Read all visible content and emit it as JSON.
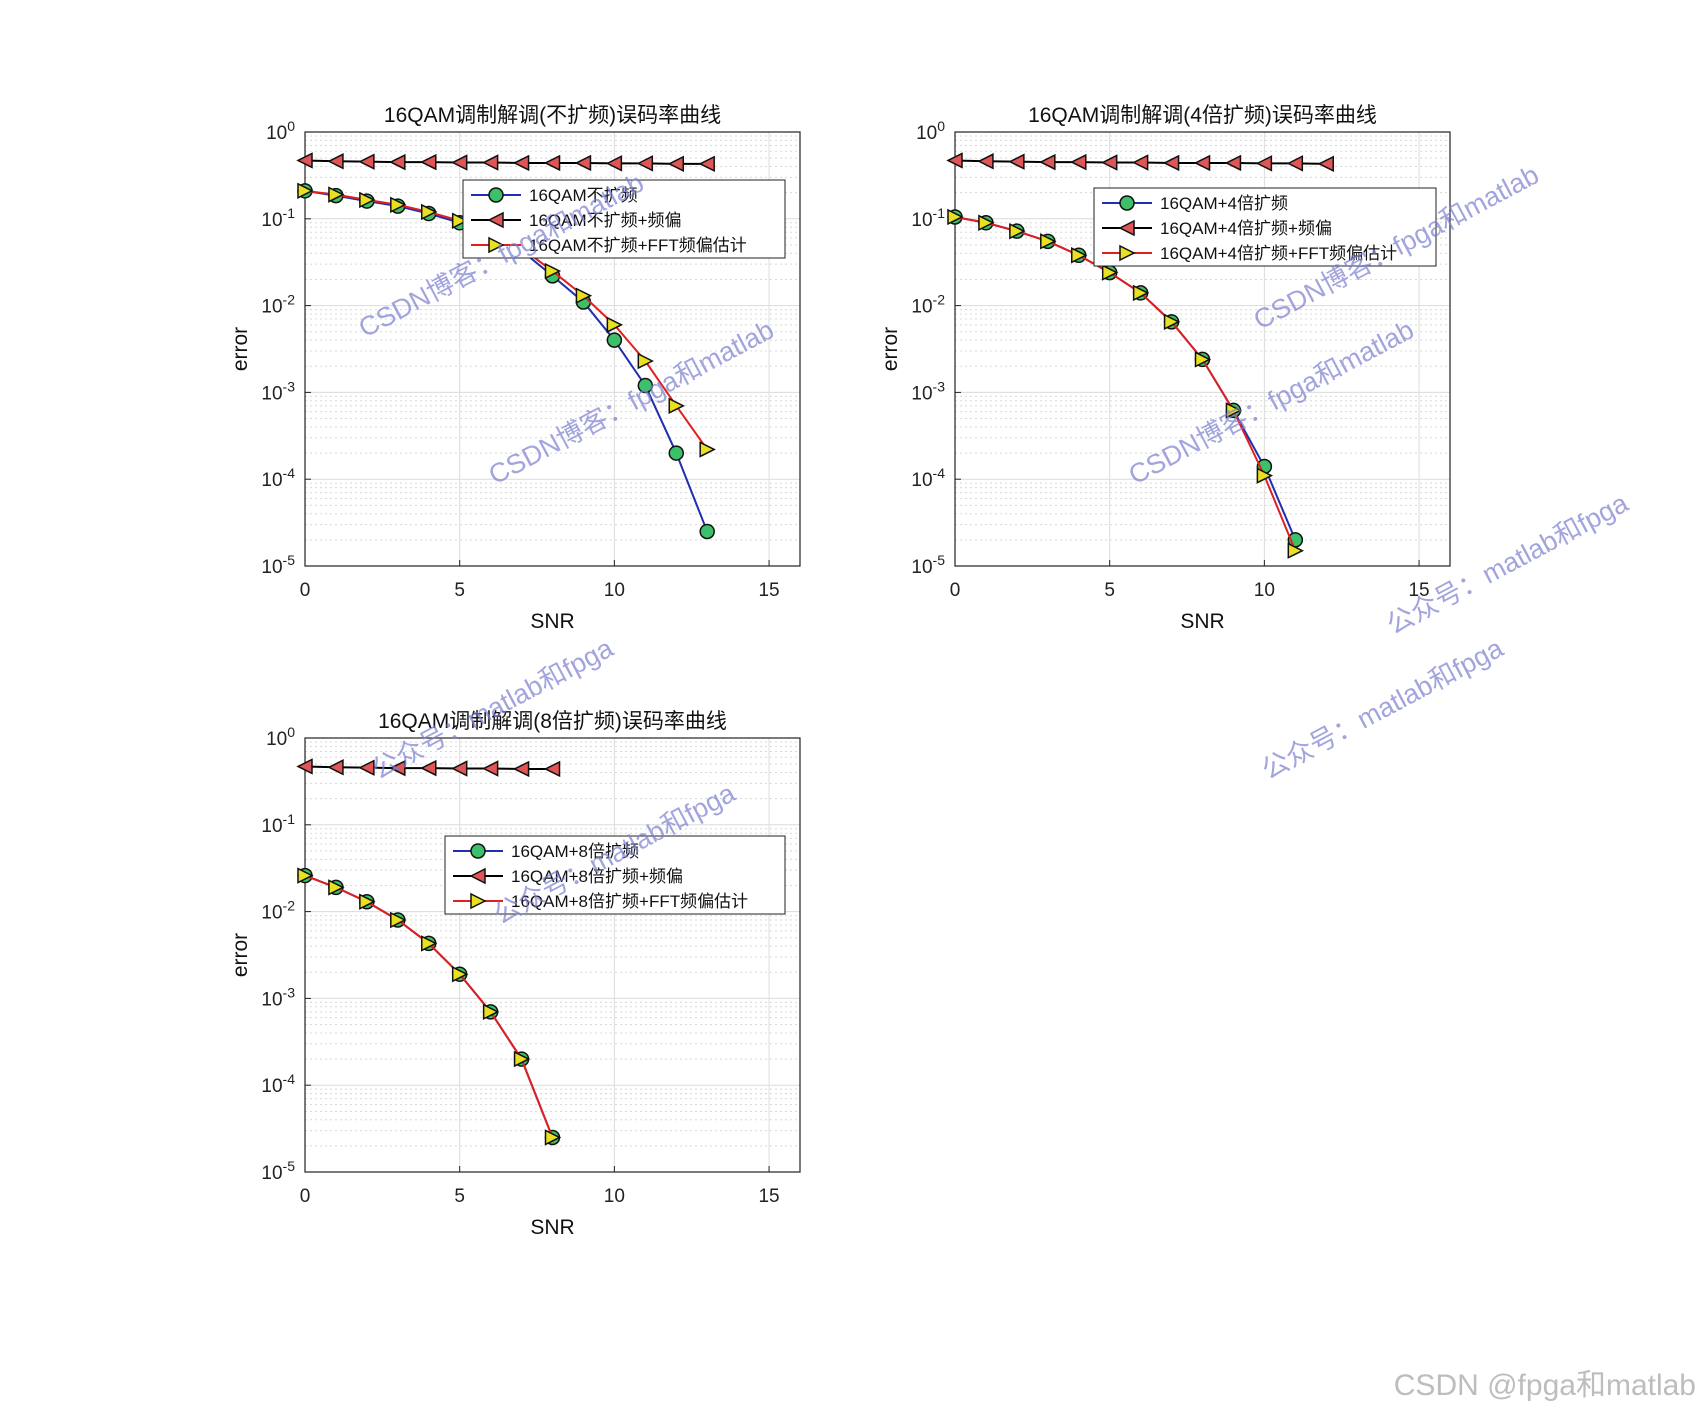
{
  "chart_data": [
    {
      "type": "line",
      "title": "16QAM调制解调(不扩频)误码率曲线",
      "xlabel": "SNR",
      "ylabel": "error",
      "xlim": [
        0,
        16
      ],
      "ylim": [
        1e-05,
        1
      ],
      "yscale": "log",
      "x_ticks": [
        "0",
        "5",
        "10",
        "15"
      ],
      "y_ticks": [
        "10-5",
        "10-4",
        "10-3",
        "10-2",
        "10-1",
        "100"
      ],
      "grid": true,
      "minor_grid": true,
      "legend_position": "top-right",
      "series": [
        {
          "name": "16QAM不扩频",
          "color": "#1f2fb0",
          "marker": "circle",
          "marker_color": "#3cc06a",
          "x": [
            0,
            1,
            2,
            3,
            4,
            5,
            6,
            7,
            8,
            9,
            10,
            11,
            12,
            13
          ],
          "y": [
            0.21,
            0.185,
            0.16,
            0.14,
            0.115,
            0.09,
            0.065,
            0.043,
            0.022,
            0.011,
            0.004,
            0.0012,
            0.0002,
            2.5e-05
          ]
        },
        {
          "name": "16QAM不扩频+频偏",
          "color": "#000000",
          "marker": "triangle-left",
          "marker_color": "#e05555",
          "x": [
            0,
            1,
            2,
            3,
            4,
            5,
            6,
            7,
            8,
            9,
            10,
            11,
            12,
            13
          ],
          "y": [
            0.47,
            0.46,
            0.455,
            0.45,
            0.45,
            0.445,
            0.445,
            0.44,
            0.44,
            0.44,
            0.435,
            0.435,
            0.43,
            0.43
          ]
        },
        {
          "name": "16QAM不扩频+FFT频偏估计",
          "color": "#e01f1f",
          "marker": "triangle-right",
          "marker_color": "#e8e020",
          "x": [
            0,
            1,
            2,
            3,
            4,
            5,
            6,
            7,
            8,
            9,
            10,
            11,
            12,
            13
          ],
          "y": [
            0.21,
            0.19,
            0.165,
            0.145,
            0.12,
            0.095,
            0.07,
            0.046,
            0.025,
            0.013,
            0.006,
            0.0023,
            0.0007,
            0.00022
          ]
        }
      ]
    },
    {
      "type": "line",
      "title": "16QAM调制解调(4倍扩频)误码率曲线",
      "xlabel": "SNR",
      "ylabel": "error",
      "xlim": [
        0,
        16
      ],
      "ylim": [
        1e-05,
        1
      ],
      "yscale": "log",
      "x_ticks": [
        "0",
        "5",
        "10",
        "15"
      ],
      "y_ticks": [
        "10-5",
        "10-4",
        "10-3",
        "10-2",
        "10-1",
        "100"
      ],
      "grid": true,
      "minor_grid": true,
      "legend_position": "top-right",
      "series": [
        {
          "name": "16QAM+4倍扩频",
          "color": "#1f2fb0",
          "marker": "circle",
          "marker_color": "#3cc06a",
          "x": [
            0,
            1,
            2,
            3,
            4,
            5,
            6,
            7,
            8,
            9,
            10,
            11
          ],
          "y": [
            0.105,
            0.09,
            0.072,
            0.055,
            0.038,
            0.024,
            0.014,
            0.0065,
            0.0024,
            0.00062,
            0.00014,
            2e-05
          ]
        },
        {
          "name": "16QAM+4倍扩频+频偏",
          "color": "#000000",
          "marker": "triangle-left",
          "marker_color": "#e05555",
          "x": [
            0,
            1,
            2,
            3,
            4,
            5,
            6,
            7,
            8,
            9,
            10,
            11,
            12
          ],
          "y": [
            0.47,
            0.46,
            0.455,
            0.45,
            0.45,
            0.445,
            0.445,
            0.44,
            0.44,
            0.44,
            0.435,
            0.435,
            0.43
          ]
        },
        {
          "name": "16QAM+4倍扩频+FFT频偏估计",
          "color": "#e01f1f",
          "marker": "triangle-right",
          "marker_color": "#e8e020",
          "x": [
            0,
            1,
            2,
            3,
            4,
            5,
            6,
            7,
            8,
            9,
            10,
            11
          ],
          "y": [
            0.105,
            0.09,
            0.072,
            0.055,
            0.038,
            0.024,
            0.014,
            0.0065,
            0.0024,
            0.00062,
            0.00011,
            1.5e-05
          ]
        }
      ]
    },
    {
      "type": "line",
      "title": "16QAM调制解调(8倍扩频)误码率曲线",
      "xlabel": "SNR",
      "ylabel": "error",
      "xlim": [
        0,
        16
      ],
      "ylim": [
        1e-05,
        1
      ],
      "yscale": "log",
      "x_ticks": [
        "0",
        "5",
        "10",
        "15"
      ],
      "y_ticks": [
        "10-5",
        "10-4",
        "10-3",
        "10-2",
        "10-1",
        "100"
      ],
      "grid": true,
      "minor_grid": true,
      "legend_position": "top-right",
      "series": [
        {
          "name": "16QAM+8倍扩频",
          "color": "#1f2fb0",
          "marker": "circle",
          "marker_color": "#3cc06a",
          "x": [
            0,
            1,
            2,
            3,
            4,
            5,
            6,
            7,
            8
          ],
          "y": [
            0.026,
            0.019,
            0.013,
            0.008,
            0.0043,
            0.0019,
            0.0007,
            0.0002,
            2.5e-05
          ]
        },
        {
          "name": "16QAM+8倍扩频+频偏",
          "color": "#000000",
          "marker": "triangle-left",
          "marker_color": "#e05555",
          "x": [
            0,
            1,
            2,
            3,
            4,
            5,
            6,
            7,
            8
          ],
          "y": [
            0.47,
            0.46,
            0.455,
            0.45,
            0.45,
            0.445,
            0.445,
            0.44,
            0.44
          ]
        },
        {
          "name": "16QAM+8倍扩频+FFT频偏估计",
          "color": "#e01f1f",
          "marker": "triangle-right",
          "marker_color": "#e8e020",
          "x": [
            0,
            1,
            2,
            3,
            4,
            5,
            6,
            7,
            8
          ],
          "y": [
            0.026,
            0.019,
            0.013,
            0.008,
            0.0043,
            0.0019,
            0.0007,
            0.0002,
            2.5e-05
          ]
        }
      ]
    }
  ],
  "watermarks": [
    "CSDN博客：fpga和matlab",
    "CSDN博客：fpga和matlab",
    "CSDN博客：fpga和matlab",
    "CSDN博客：fpga和matlab",
    "公众号：matlab和fpga",
    "公众号：matlab和fpga",
    "公众号：matlab和fpga",
    "公众号：matlab和fpga"
  ],
  "footer_credit": "CSDN @fpga和matlab"
}
